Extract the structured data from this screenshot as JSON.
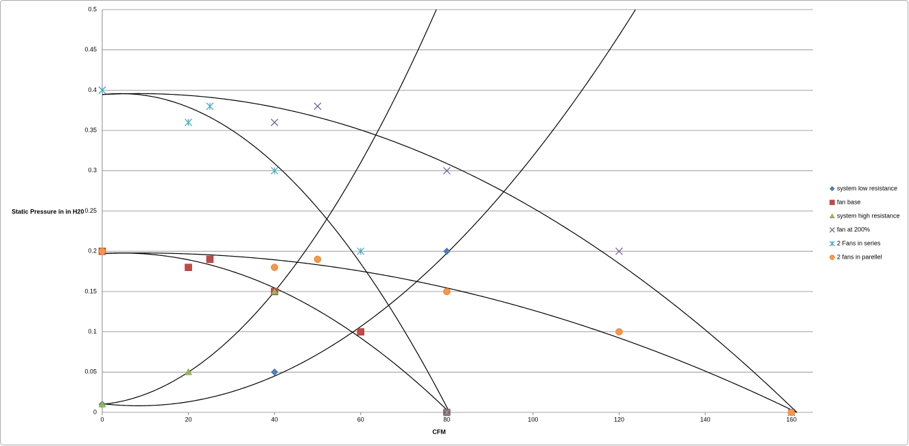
{
  "chart_data": {
    "type": "scatter",
    "x_label": "CFM",
    "y_label": "Static Pressure in in H20",
    "xlim": [
      0,
      165
    ],
    "xticks": [
      0,
      20,
      40,
      60,
      80,
      100,
      120,
      140,
      160
    ],
    "ylim": [
      0,
      0.5
    ],
    "yticks": [
      0,
      0.05,
      0.1,
      0.15,
      0.2,
      0.25,
      0.3,
      0.35,
      0.4,
      0.45,
      0.5
    ],
    "grid": true,
    "legend": "right",
    "trendlines": "polynomial",
    "series": [
      {
        "name": "system low resistance",
        "color": "#4a7ebb",
        "marker": "diamond",
        "x": [
          0,
          40,
          60,
          80
        ],
        "values": [
          0.01,
          0.05,
          0.1,
          0.2
        ]
      },
      {
        "name": "fan base",
        "color": "#be4b48",
        "marker": "square",
        "x": [
          0,
          20,
          25,
          40,
          60,
          80
        ],
        "values": [
          0.2,
          0.18,
          0.19,
          0.15,
          0.1,
          0
        ]
      },
      {
        "name": "system high resistance",
        "color": "#98b954",
        "marker": "triangle",
        "x": [
          0,
          20,
          40
        ],
        "values": [
          0.01,
          0.05,
          0.15
        ]
      },
      {
        "name": "fan at 200%",
        "color": "#7d60a0",
        "marker": "x",
        "x": [
          0,
          40,
          50,
          80,
          120,
          160
        ],
        "values": [
          0.4,
          0.36,
          0.38,
          0.3,
          0.2,
          0
        ]
      },
      {
        "name": "2 Fans in series",
        "color": "#4bacc6",
        "marker": "star",
        "x": [
          0,
          20,
          25,
          40,
          60,
          80
        ],
        "values": [
          0.4,
          0.36,
          0.38,
          0.3,
          0.2,
          0
        ]
      },
      {
        "name": "2 fans in parellel",
        "color": "#f79646",
        "marker": "circle",
        "x": [
          0,
          40,
          50,
          80,
          120,
          160
        ],
        "values": [
          0.2,
          0.18,
          0.19,
          0.15,
          0.1,
          0
        ]
      }
    ]
  }
}
